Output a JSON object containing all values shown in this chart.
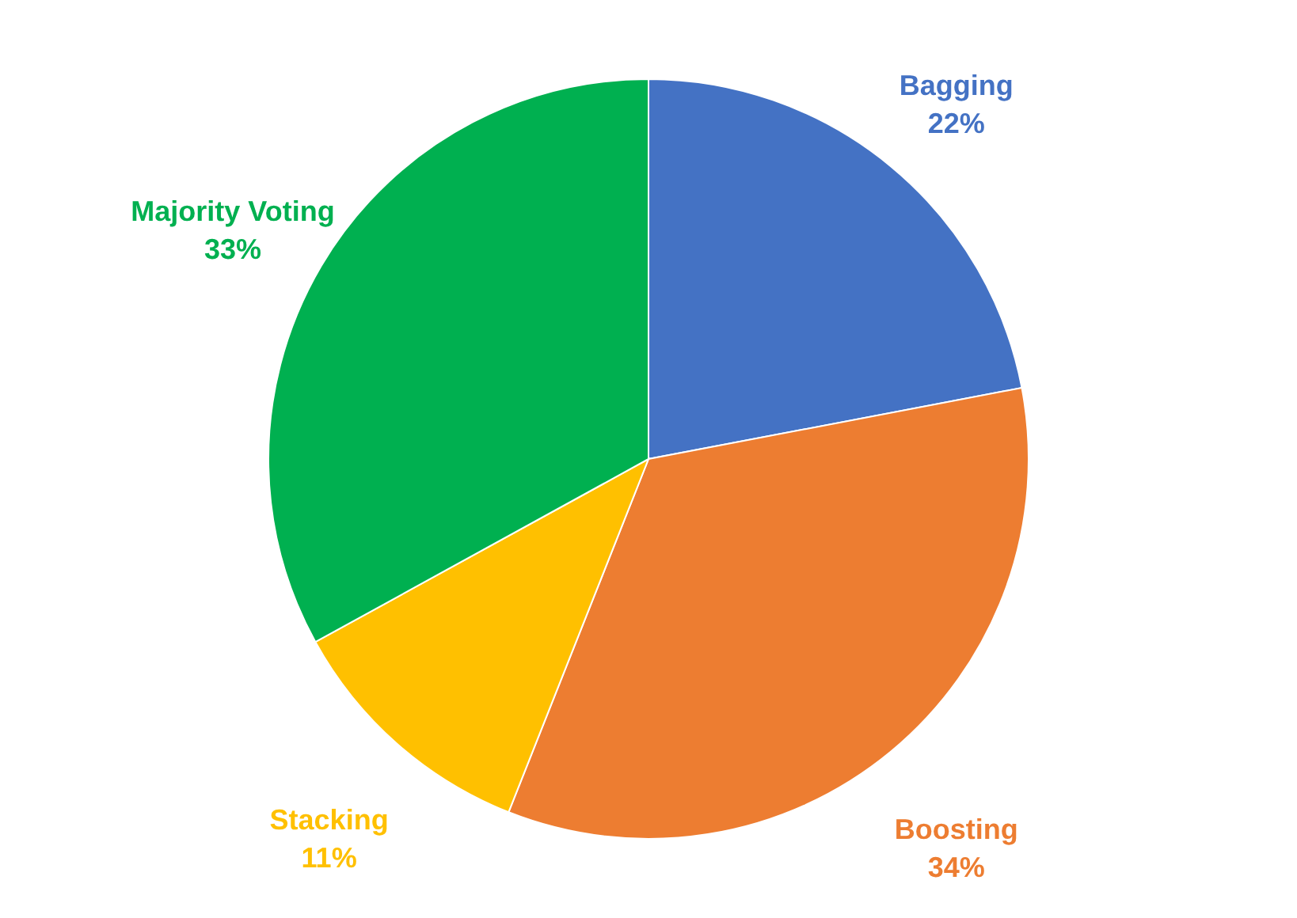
{
  "chart_data": {
    "type": "pie",
    "categories": [
      "Bagging",
      "Boosting",
      "Stacking",
      "Majority Voting"
    ],
    "values": [
      22,
      34,
      11,
      33
    ],
    "colors": [
      "#4472c4",
      "#ed7d31",
      "#ffc000",
      "#00b050"
    ],
    "value_labels": [
      "22%",
      "34%",
      "11%",
      "33%"
    ],
    "legend": false
  }
}
